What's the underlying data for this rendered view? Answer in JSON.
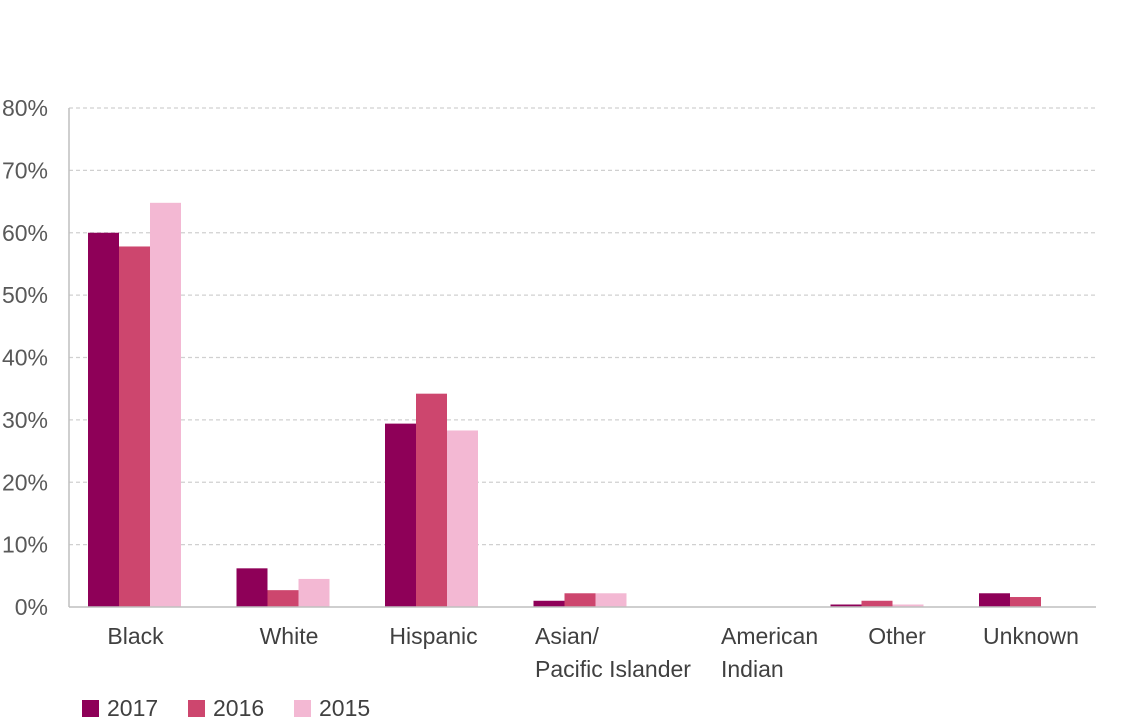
{
  "chart_data": {
    "type": "bar",
    "title": "",
    "xlabel": "",
    "ylabel": "",
    "categories": [
      [
        "Black"
      ],
      [
        "White"
      ],
      [
        "Hispanic"
      ],
      [
        "Asian/",
        "Pacific Islander"
      ],
      [
        "American",
        "Indian"
      ],
      [
        "Other"
      ],
      [
        "Unknown"
      ]
    ],
    "series": [
      {
        "name": "2017",
        "color": "#8e0058",
        "values": [
          60.0,
          6.2,
          29.4,
          1.0,
          0.0,
          0.4,
          2.2
        ]
      },
      {
        "name": "2016",
        "color": "#cd466e",
        "values": [
          57.8,
          2.7,
          34.2,
          2.2,
          0.0,
          1.0,
          1.6
        ]
      },
      {
        "name": "2015",
        "color": "#f3b8d3",
        "values": [
          64.8,
          4.5,
          28.3,
          2.2,
          0.0,
          0.4,
          0.0
        ]
      }
    ],
    "ylim": [
      0,
      80
    ],
    "yticks": [
      {
        "value": 0,
        "label": "0%"
      },
      {
        "value": 10,
        "label": "10%"
      },
      {
        "value": 20,
        "label": "20%"
      },
      {
        "value": 30,
        "label": "30%"
      },
      {
        "value": 40,
        "label": "40%"
      },
      {
        "value": 50,
        "label": "50%"
      },
      {
        "value": 60,
        "label": "60%"
      },
      {
        "value": 70,
        "label": "70%"
      },
      {
        "value": 80,
        "label": "80%"
      }
    ],
    "grid": true,
    "legend_position": "bottom-left"
  }
}
